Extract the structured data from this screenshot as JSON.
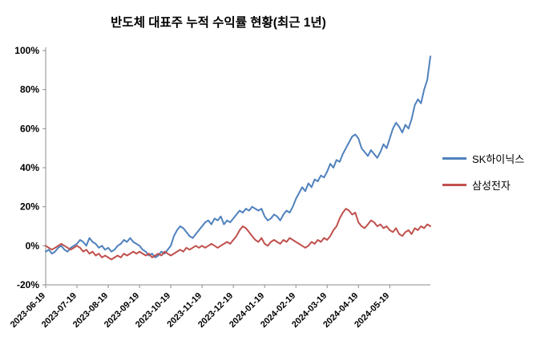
{
  "title": "반도체 대표주 누적 수익률 현황(최근 1년)",
  "chart_data": {
    "type": "line",
    "title": "반도체 대표주 누적 수익률 현황(최근 1년)",
    "xlabel": "",
    "ylabel": "",
    "ylim": [
      -20,
      100
    ],
    "y_ticks": [
      -20,
      0,
      20,
      40,
      60,
      80,
      100
    ],
    "y_tick_suffix": "%",
    "grid": false,
    "legend_position": "right",
    "x_tick_labels": [
      "2023-06-19",
      "2023-07-19",
      "2023-08-19",
      "2023-09-19",
      "2023-10-19",
      "2023-11-19",
      "2023-12-19",
      "2024-01-19",
      "2024-02-19",
      "2024-03-19",
      "2024-04-19",
      "2024-05-19"
    ],
    "x_tick_indices": [
      0,
      10,
      20,
      30,
      40,
      50,
      60,
      70,
      80,
      90,
      100,
      110
    ],
    "series": [
      {
        "name": "SK하이닉스",
        "color": "#4F81BD",
        "values": [
          -3,
          -2,
          -4,
          -3,
          -1,
          0,
          -2,
          -3,
          -1,
          0,
          1,
          3,
          2,
          0,
          4,
          2,
          1,
          -1,
          0,
          -2,
          -1,
          -3,
          -2,
          0,
          1,
          3,
          2,
          4,
          2,
          1,
          0,
          -2,
          -3,
          -5,
          -4,
          -6,
          -5,
          -3,
          -4,
          -2,
          0,
          5,
          8,
          10,
          9,
          7,
          5,
          4,
          6,
          8,
          10,
          12,
          13,
          11,
          14,
          13,
          15,
          11,
          13,
          12,
          14,
          16,
          18,
          17,
          19,
          18,
          20,
          19,
          18,
          19,
          15,
          13,
          14,
          16,
          15,
          13,
          16,
          18,
          17,
          20,
          24,
          27,
          30,
          28,
          32,
          30,
          34,
          33,
          36,
          35,
          38,
          42,
          40,
          44,
          43,
          47,
          50,
          53,
          56,
          57,
          55,
          50,
          48,
          46,
          49,
          47,
          45,
          48,
          52,
          50,
          55,
          60,
          63,
          61,
          58,
          62,
          60,
          65,
          72,
          75,
          73,
          80,
          85,
          97
        ]
      },
      {
        "name": "삼성전자",
        "color": "#C0504D",
        "values": [
          0,
          -1,
          -2,
          -1,
          0,
          1,
          0,
          -1,
          -2,
          -1,
          0,
          -1,
          -3,
          -2,
          -4,
          -3,
          -5,
          -4,
          -6,
          -5,
          -6,
          -7,
          -6,
          -5,
          -6,
          -4,
          -5,
          -4,
          -3,
          -4,
          -3,
          -4,
          -5,
          -4,
          -6,
          -5,
          -4,
          -5,
          -3,
          -4,
          -5,
          -4,
          -3,
          -2,
          -3,
          -1,
          -2,
          -1,
          0,
          -1,
          0,
          -1,
          0,
          1,
          0,
          -1,
          0,
          1,
          2,
          1,
          3,
          5,
          8,
          10,
          9,
          7,
          5,
          3,
          2,
          4,
          1,
          0,
          2,
          3,
          2,
          1,
          3,
          2,
          4,
          3,
          2,
          1,
          0,
          -1,
          0,
          2,
          1,
          3,
          2,
          4,
          3,
          5,
          8,
          10,
          14,
          17,
          19,
          18,
          16,
          17,
          12,
          10,
          9,
          11,
          13,
          12,
          10,
          11,
          9,
          10,
          8,
          7,
          9,
          6,
          5,
          7,
          8,
          6,
          9,
          8,
          10,
          9,
          11,
          10
        ]
      }
    ]
  }
}
